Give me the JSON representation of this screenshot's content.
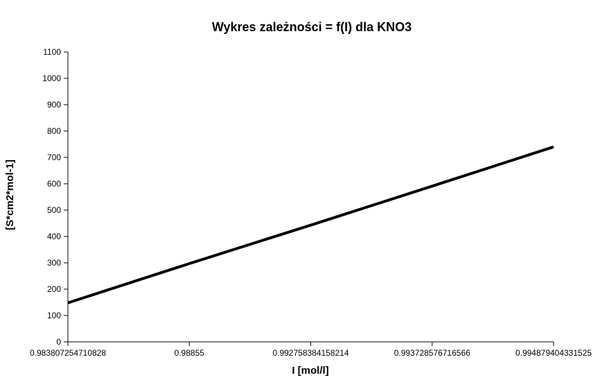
{
  "chart_data": {
    "type": "line",
    "title": "Wykres zależności    = f(I) dla KNO3",
    "xlabel": "I [mol/l]",
    "ylabel": "[S*cm2*mol-1]",
    "categories": [
      "0.983807254710828",
      "0.98855",
      "0.992758384158214",
      "0.993728576716566",
      "0.994879404331525"
    ],
    "ylim": [
      0,
      1100
    ],
    "yticks": [
      0,
      100,
      200,
      300,
      400,
      500,
      600,
      700,
      800,
      900,
      1000,
      1100
    ],
    "series": [
      {
        "values": [
          148,
          297,
          443,
          591,
          740
        ]
      }
    ],
    "grid": false,
    "legend": "none"
  }
}
